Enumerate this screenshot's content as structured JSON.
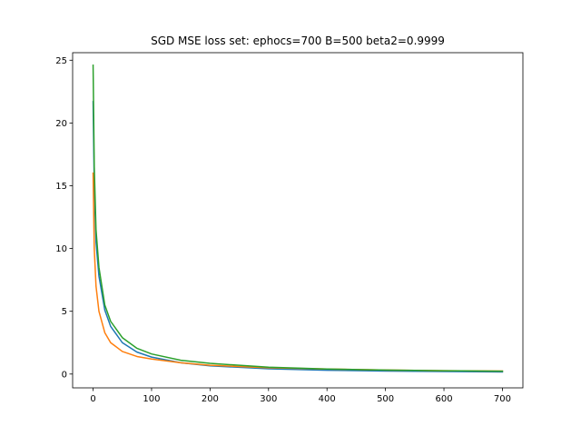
{
  "chart_data": {
    "type": "line",
    "title": "SGD MSE loss set: ephocs=700 B=500 beta2=0.9999",
    "xlabel": "",
    "ylabel": "",
    "xlim": [
      -35,
      735
    ],
    "ylim": [
      -1.1,
      25.6
    ],
    "xticks": [
      0,
      100,
      200,
      300,
      400,
      500,
      600,
      700
    ],
    "yticks": [
      0,
      5,
      10,
      15,
      20,
      25
    ],
    "grid": false,
    "legend": "none",
    "series": [
      {
        "color": "#1f77b4",
        "x": [
          0,
          2,
          5,
          10,
          20,
          30,
          50,
          75,
          100,
          150,
          200,
          300,
          400,
          500,
          600,
          700
        ],
        "y": [
          21.7,
          15.0,
          10.5,
          7.8,
          5.1,
          3.8,
          2.5,
          1.75,
          1.35,
          0.9,
          0.65,
          0.42,
          0.3,
          0.24,
          0.2,
          0.17
        ]
      },
      {
        "color": "#ff7f0e",
        "x": [
          0,
          2,
          5,
          10,
          20,
          30,
          50,
          75,
          100,
          150,
          200,
          300,
          400,
          500,
          600,
          700
        ],
        "y": [
          16.0,
          10.0,
          7.0,
          5.0,
          3.3,
          2.5,
          1.8,
          1.4,
          1.2,
          0.9,
          0.7,
          0.5,
          0.4,
          0.32,
          0.27,
          0.24
        ]
      },
      {
        "color": "#2ca02c",
        "x": [
          0,
          2,
          5,
          10,
          20,
          30,
          50,
          75,
          100,
          150,
          200,
          300,
          400,
          500,
          600,
          700
        ],
        "y": [
          24.6,
          16.5,
          11.5,
          8.5,
          5.5,
          4.2,
          2.9,
          2.05,
          1.6,
          1.1,
          0.85,
          0.55,
          0.4,
          0.32,
          0.27,
          0.23
        ]
      }
    ]
  }
}
